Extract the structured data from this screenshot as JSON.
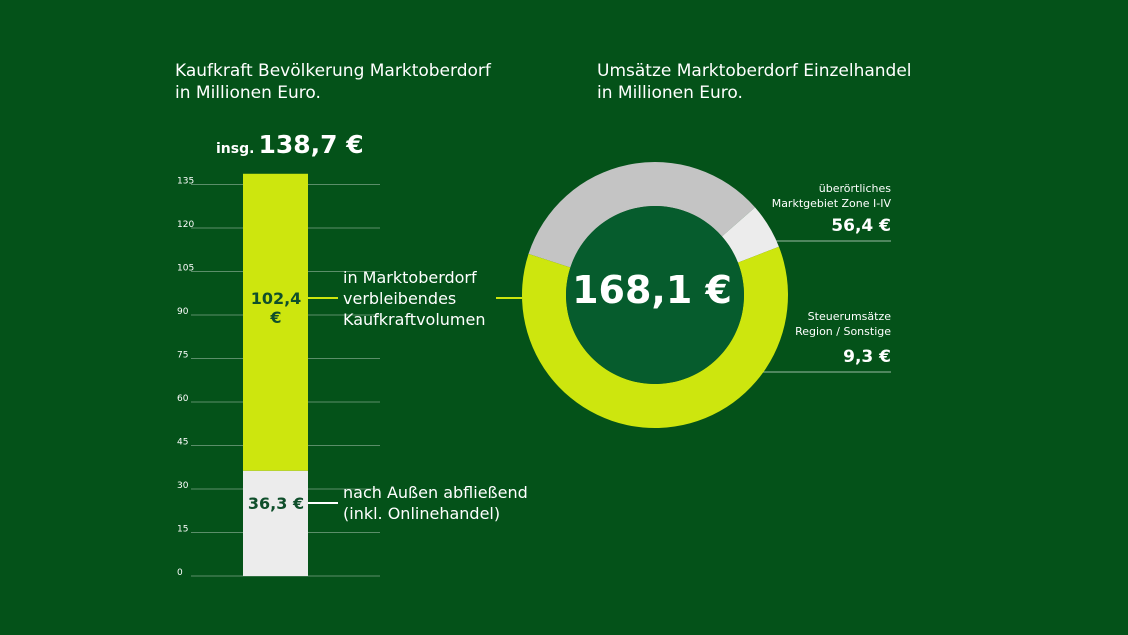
{
  "left_chart": {
    "title_line1": "Kaufkraft Bevölkerung Marktoberdorf",
    "title_line2": "in Millionen Euro.",
    "total_prefix": "insg.",
    "total_label": "138,7 €",
    "segment_top_label": "102,4 €",
    "segment_bottom_label": "36,3 €",
    "annotation_top": [
      "in Marktoberdorf",
      "verbleibendes",
      "Kaufkraftvolumen"
    ],
    "annotation_bottom": [
      "nach Außen abfließend",
      "(inkl. Onlinehandel)"
    ]
  },
  "right_chart": {
    "title_line1": "Umsätze Marktoberdorf Einzelhandel",
    "title_line2": "in Millionen Euro.",
    "center_label": "168,1 €",
    "label_zone": [
      "überörtliches",
      "Marktgebiet Zone I-IV"
    ],
    "value_zone": "56,4 €",
    "label_tax": [
      "Steuerumsätze",
      "Region / Sonstige"
    ],
    "value_tax": "9,3 €"
  },
  "colors": {
    "background": "#045219",
    "lime": "#cde60e",
    "light_gray": "#ececec",
    "gray": "#c4c4c4",
    "center_green": "#065c2d",
    "dark_text": "#0f4f2b"
  },
  "chart_data": [
    {
      "type": "bar",
      "stacked": true,
      "categories": [
        ""
      ],
      "series": [
        {
          "values": [
            36.3
          ]
        },
        {
          "values": [
            102.4
          ]
        }
      ],
      "total": 138.7,
      "ylim": [
        0,
        138.7
      ],
      "yticks": [
        0,
        15,
        30,
        45,
        60,
        75,
        90,
        105,
        120,
        135
      ],
      "grid": true
    },
    {
      "type": "pie",
      "donut": true,
      "slices": [
        {
          "name": "überörtliches Marktgebiet Zone I-IV",
          "value": 56.4
        },
        {
          "name": "Steuerumsätze Region / Sonstige",
          "value": 9.3
        },
        {
          "value": 102.4
        }
      ],
      "total": 168.1
    }
  ]
}
